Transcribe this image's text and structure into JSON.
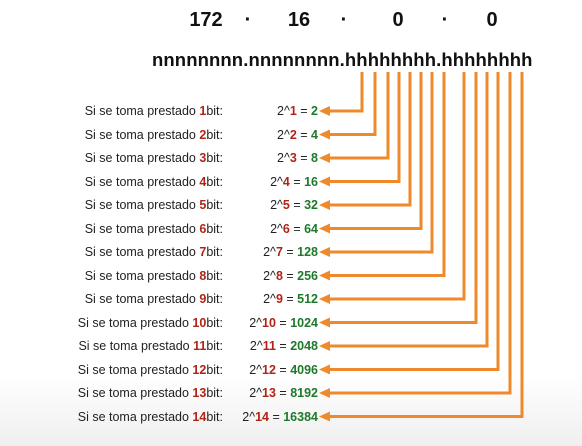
{
  "octets": [
    "172",
    "·",
    "16",
    "·",
    "0",
    "·",
    "0"
  ],
  "pattern": "nnnnnnnn.nnnnnnnn.hhhhhhhh.hhhhhhhh",
  "accent_color": "#ef8a2c",
  "bits_color": "#b02418",
  "value_color": "#1d7a2a",
  "rows": [
    {
      "prefix": "Si se toma prestado ",
      "bits": "1",
      "suffix": "bit:",
      "base": "2^",
      "exp": "1",
      "eq": " = ",
      "value": "2"
    },
    {
      "prefix": "Si se toma prestado ",
      "bits": "2",
      "suffix": "bit:",
      "base": "2^",
      "exp": "2",
      "eq": " = ",
      "value": "4"
    },
    {
      "prefix": "Si se toma prestado ",
      "bits": "3",
      "suffix": "bit:",
      "base": "2^",
      "exp": "3",
      "eq": " = ",
      "value": "8"
    },
    {
      "prefix": "Si se toma prestado ",
      "bits": "4",
      "suffix": "bit:",
      "base": "2^",
      "exp": "4",
      "eq": " = ",
      "value": "16"
    },
    {
      "prefix": "Si se toma prestado ",
      "bits": "5",
      "suffix": "bit:",
      "base": "2^",
      "exp": "5",
      "eq": " = ",
      "value": "32"
    },
    {
      "prefix": "Si se toma prestado ",
      "bits": "6",
      "suffix": "bit:",
      "base": "2^",
      "exp": "6",
      "eq": " = ",
      "value": "64"
    },
    {
      "prefix": "Si se toma prestado ",
      "bits": "7",
      "suffix": "bit:",
      "base": "2^",
      "exp": "7",
      "eq": " = ",
      "value": "128"
    },
    {
      "prefix": "Si se toma prestado ",
      "bits": "8",
      "suffix": "bit:",
      "base": "2^",
      "exp": "8",
      "eq": " = ",
      "value": "256"
    },
    {
      "prefix": "Si se toma prestado ",
      "bits": "9",
      "suffix": "bit:",
      "base": "2^",
      "exp": "9",
      "eq": " = ",
      "value": "512"
    },
    {
      "prefix": "Si se toma prestado ",
      "bits": "10",
      "suffix": "bit:",
      "base": "2^",
      "exp": "10",
      "eq": " = ",
      "value": "1024"
    },
    {
      "prefix": "Si se toma prestado ",
      "bits": "11",
      "suffix": "bit:",
      "base": "2^",
      "exp": "11",
      "eq": " = ",
      "value": "2048"
    },
    {
      "prefix": "Si se toma prestado ",
      "bits": "12",
      "suffix": "bit:",
      "base": "2^",
      "exp": "12",
      "eq": " = ",
      "value": "4096"
    },
    {
      "prefix": "Si se toma prestado ",
      "bits": "13",
      "suffix": "bit:",
      "base": "2^",
      "exp": "13",
      "eq": " = ",
      "value": "8192"
    },
    {
      "prefix": "Si se toma prestado ",
      "bits": "14",
      "suffix": "bit:",
      "base": "2^",
      "exp": "14",
      "eq": " = ",
      "value": "16384"
    }
  ]
}
